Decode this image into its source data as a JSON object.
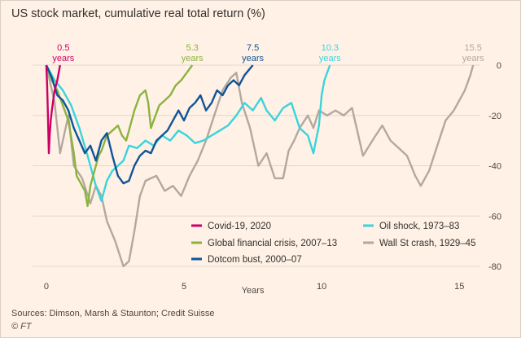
{
  "title": "US stock market, cumulative real total return (%)",
  "source": "Sources: Dimson, Marsh & Staunton; Credit Suisse",
  "logo": "© FT",
  "chart_data": {
    "type": "line",
    "xlabel": "Years",
    "ylabel": "",
    "xlim": [
      -0.5,
      16.5
    ],
    "ylim": [
      -80,
      2
    ],
    "x_ticks": [
      0,
      5,
      10,
      15
    ],
    "y_ticks": [
      0,
      -20,
      -40,
      -60,
      -80
    ],
    "grid": "horizontal",
    "legend": "bottom-center",
    "series": [
      {
        "name": "Covid-19, 2020",
        "color": "#cc0066",
        "duration_label": "0.5",
        "duration_unit": "years",
        "points": [
          [
            0,
            0
          ],
          [
            0.03,
            -8
          ],
          [
            0.06,
            -20
          ],
          [
            0.09,
            -35
          ],
          [
            0.12,
            -28
          ],
          [
            0.16,
            -22
          ],
          [
            0.2,
            -18
          ],
          [
            0.25,
            -14
          ],
          [
            0.3,
            -10
          ],
          [
            0.35,
            -8
          ],
          [
            0.4,
            -6
          ],
          [
            0.45,
            -3
          ],
          [
            0.5,
            0
          ]
        ]
      },
      {
        "name": "Global financial crisis, 2007–13",
        "color": "#8ab33f",
        "duration_label": "5.3",
        "duration_unit": "years",
        "points": [
          [
            0,
            0
          ],
          [
            0.2,
            -6
          ],
          [
            0.4,
            -10
          ],
          [
            0.6,
            -16
          ],
          [
            0.8,
            -22
          ],
          [
            1.0,
            -35
          ],
          [
            1.1,
            -44
          ],
          [
            1.25,
            -47
          ],
          [
            1.4,
            -50
          ],
          [
            1.5,
            -56
          ],
          [
            1.6,
            -48
          ],
          [
            1.75,
            -42
          ],
          [
            1.9,
            -36
          ],
          [
            2.0,
            -34
          ],
          [
            2.2,
            -28
          ],
          [
            2.4,
            -26
          ],
          [
            2.6,
            -24
          ],
          [
            2.75,
            -28
          ],
          [
            2.9,
            -30
          ],
          [
            3.0,
            -26
          ],
          [
            3.2,
            -18
          ],
          [
            3.4,
            -12
          ],
          [
            3.6,
            -10
          ],
          [
            3.7,
            -15
          ],
          [
            3.8,
            -25
          ],
          [
            3.9,
            -22
          ],
          [
            4.1,
            -16
          ],
          [
            4.3,
            -14
          ],
          [
            4.5,
            -12
          ],
          [
            4.7,
            -8
          ],
          [
            4.9,
            -6
          ],
          [
            5.1,
            -3
          ],
          [
            5.3,
            0
          ]
        ]
      },
      {
        "name": "Dotcom bust, 2000–07",
        "color": "#0f5499",
        "duration_label": "7.5",
        "duration_unit": "years",
        "points": [
          [
            0,
            0
          ],
          [
            0.2,
            -5
          ],
          [
            0.4,
            -12
          ],
          [
            0.6,
            -14
          ],
          [
            0.8,
            -18
          ],
          [
            1.0,
            -25
          ],
          [
            1.2,
            -30
          ],
          [
            1.4,
            -35
          ],
          [
            1.6,
            -32
          ],
          [
            1.8,
            -38
          ],
          [
            2.0,
            -30
          ],
          [
            2.2,
            -27
          ],
          [
            2.4,
            -36
          ],
          [
            2.6,
            -44
          ],
          [
            2.8,
            -47
          ],
          [
            3.0,
            -46
          ],
          [
            3.2,
            -40
          ],
          [
            3.4,
            -36
          ],
          [
            3.6,
            -34
          ],
          [
            3.8,
            -35
          ],
          [
            4.0,
            -30
          ],
          [
            4.2,
            -28
          ],
          [
            4.4,
            -26
          ],
          [
            4.6,
            -22
          ],
          [
            4.8,
            -18
          ],
          [
            5.0,
            -22
          ],
          [
            5.2,
            -17
          ],
          [
            5.4,
            -15
          ],
          [
            5.6,
            -12
          ],
          [
            5.8,
            -18
          ],
          [
            6.0,
            -15
          ],
          [
            6.2,
            -10
          ],
          [
            6.4,
            -12
          ],
          [
            6.6,
            -8
          ],
          [
            6.8,
            -6
          ],
          [
            7.0,
            -8
          ],
          [
            7.2,
            -4
          ],
          [
            7.5,
            0
          ]
        ]
      },
      {
        "name": "Oil shock, 1973–83",
        "color": "#3ad4dc",
        "duration_label": "10.3",
        "duration_unit": "years",
        "points": [
          [
            0,
            0
          ],
          [
            0.3,
            -6
          ],
          [
            0.6,
            -10
          ],
          [
            0.9,
            -16
          ],
          [
            1.2,
            -25
          ],
          [
            1.5,
            -36
          ],
          [
            1.8,
            -48
          ],
          [
            2.0,
            -54
          ],
          [
            2.2,
            -46
          ],
          [
            2.4,
            -42
          ],
          [
            2.6,
            -40
          ],
          [
            2.8,
            -38
          ],
          [
            3.0,
            -32
          ],
          [
            3.3,
            -33
          ],
          [
            3.6,
            -30
          ],
          [
            3.9,
            -32
          ],
          [
            4.2,
            -28
          ],
          [
            4.5,
            -30
          ],
          [
            4.8,
            -26
          ],
          [
            5.1,
            -28
          ],
          [
            5.4,
            -31
          ],
          [
            5.7,
            -30
          ],
          [
            6.0,
            -28
          ],
          [
            6.3,
            -26
          ],
          [
            6.6,
            -24
          ],
          [
            6.9,
            -20
          ],
          [
            7.2,
            -15
          ],
          [
            7.5,
            -18
          ],
          [
            7.8,
            -13
          ],
          [
            8.0,
            -18
          ],
          [
            8.3,
            -22
          ],
          [
            8.6,
            -17
          ],
          [
            8.9,
            -15
          ],
          [
            9.2,
            -25
          ],
          [
            9.5,
            -28
          ],
          [
            9.7,
            -35
          ],
          [
            9.9,
            -24
          ],
          [
            10.0,
            -12
          ],
          [
            10.1,
            -6
          ],
          [
            10.3,
            0
          ]
        ]
      },
      {
        "name": "Wall St crash, 1929–45",
        "color": "#b3a8a0",
        "duration_label": "15.5",
        "duration_unit": "years",
        "points": [
          [
            0,
            0
          ],
          [
            0.3,
            -15
          ],
          [
            0.5,
            -35
          ],
          [
            0.8,
            -20
          ],
          [
            1.0,
            -40
          ],
          [
            1.3,
            -45
          ],
          [
            1.6,
            -55
          ],
          [
            1.8,
            -48
          ],
          [
            2.0,
            -52
          ],
          [
            2.2,
            -62
          ],
          [
            2.5,
            -70
          ],
          [
            2.8,
            -80
          ],
          [
            3.0,
            -78
          ],
          [
            3.2,
            -66
          ],
          [
            3.4,
            -52
          ],
          [
            3.6,
            -46
          ],
          [
            3.8,
            -45
          ],
          [
            4.0,
            -44
          ],
          [
            4.3,
            -50
          ],
          [
            4.6,
            -48
          ],
          [
            4.9,
            -52
          ],
          [
            5.2,
            -44
          ],
          [
            5.5,
            -38
          ],
          [
            5.8,
            -30
          ],
          [
            6.1,
            -20
          ],
          [
            6.4,
            -10
          ],
          [
            6.7,
            -5
          ],
          [
            6.9,
            -3
          ],
          [
            7.1,
            -15
          ],
          [
            7.4,
            -25
          ],
          [
            7.7,
            -40
          ],
          [
            8.0,
            -35
          ],
          [
            8.3,
            -45
          ],
          [
            8.6,
            -45
          ],
          [
            8.8,
            -34
          ],
          [
            9.0,
            -30
          ],
          [
            9.2,
            -25
          ],
          [
            9.5,
            -20
          ],
          [
            9.7,
            -25
          ],
          [
            9.9,
            -18
          ],
          [
            10.2,
            -20
          ],
          [
            10.5,
            -18
          ],
          [
            10.8,
            -20
          ],
          [
            11.1,
            -17
          ],
          [
            11.5,
            -36
          ],
          [
            11.9,
            -29
          ],
          [
            12.2,
            -24
          ],
          [
            12.5,
            -30
          ],
          [
            12.8,
            -33
          ],
          [
            13.1,
            -36
          ],
          [
            13.4,
            -44
          ],
          [
            13.6,
            -48
          ],
          [
            13.9,
            -42
          ],
          [
            14.2,
            -32
          ],
          [
            14.5,
            -22
          ],
          [
            14.8,
            -18
          ],
          [
            15.0,
            -14
          ],
          [
            15.2,
            -10
          ],
          [
            15.4,
            -4
          ],
          [
            15.5,
            0
          ]
        ]
      }
    ]
  }
}
